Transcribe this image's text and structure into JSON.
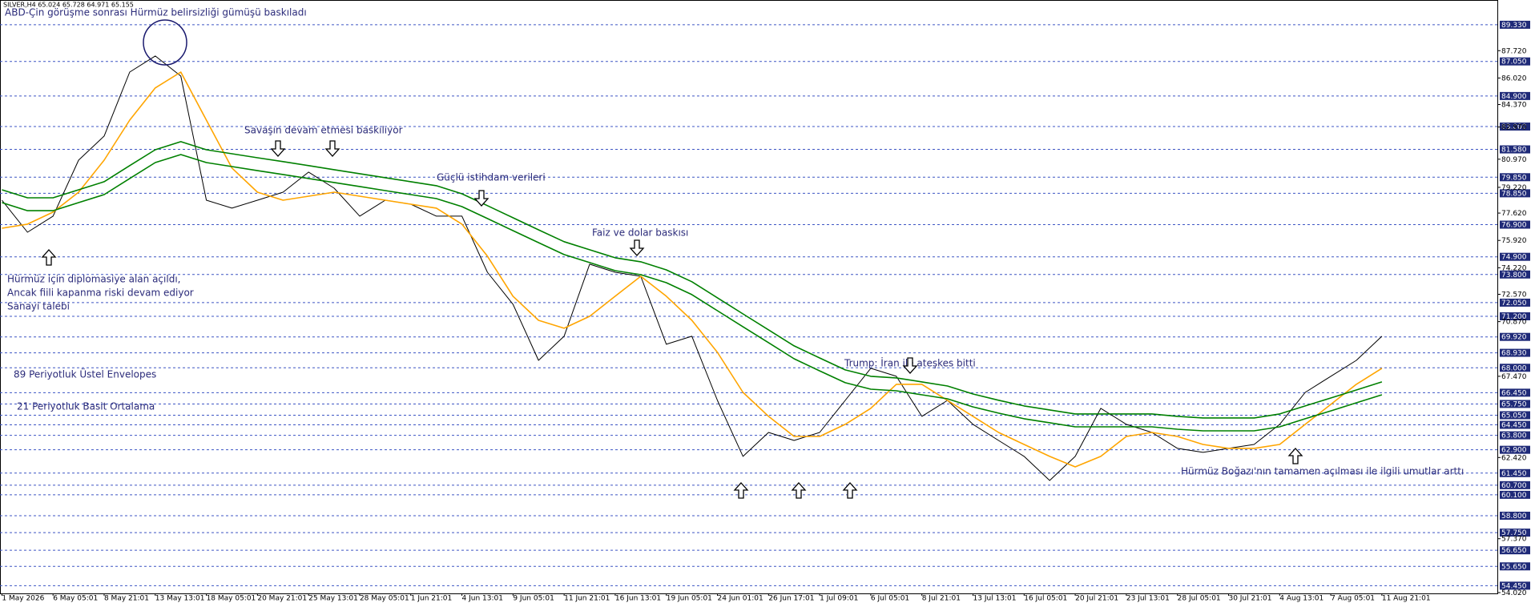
{
  "chart_data": {
    "type": "line",
    "symbol_info": "SILVER,H4  65.024 65.728 64.971 65.155",
    "title": "ABD-Çin görüşme sonrası Hürmüz belirsizliği gümüşü baskıladı",
    "annotations": [
      "Savaşın devam etmesi baskılıyor",
      "Güçlü istihdam verileri",
      "Faiz ve dolar baskısı",
      "Hürmüz için diplomasiye alan açıldı,",
      "Ancak fiili kapanma riski devam ediyor",
      "Sanayi talebi",
      "Trump: İran ile ateşkes bitti",
      "89 Periyotluk Üstel Envelopes",
      "21 Periyotluk Basit Ortalama",
      "Hürmüz Boğazı'nın tamamen açılması ile ilgili umutlar arttı"
    ],
    "x": [
      0,
      1,
      2,
      3,
      4,
      5,
      6,
      7,
      8,
      9,
      10,
      11,
      12,
      13,
      14,
      15,
      16,
      17,
      18,
      19,
      20,
      21,
      22,
      23,
      24,
      25,
      26,
      27,
      28,
      29,
      30,
      31,
      32,
      33,
      34,
      35,
      36,
      37,
      38,
      39,
      40,
      41,
      42,
      43,
      44,
      45,
      46,
      47,
      48,
      49,
      50,
      51,
      52,
      53,
      54
    ],
    "series": [
      {
        "color": "#000000",
        "values": [
          78.42,
          76.43,
          77.43,
          80.91,
          82.41,
          86.39,
          87.39,
          86.14,
          78.42,
          77.93,
          78.42,
          78.92,
          80.17,
          79.17,
          77.43,
          78.42,
          78.17,
          77.43,
          77.43,
          73.94,
          71.95,
          68.46,
          69.96,
          74.44,
          73.94,
          73.69,
          69.46,
          69.96,
          65.97,
          62.49,
          63.98,
          63.48,
          63.98,
          65.97,
          67.97,
          67.47,
          64.98,
          65.97,
          64.48,
          63.48,
          62.49,
          60.99,
          62.49,
          65.48,
          64.48,
          63.98,
          62.99,
          62.74,
          62.99,
          63.23,
          64.48,
          66.47,
          67.47,
          68.46,
          69.96
        ]
      },
      {
        "color": "#ffa500",
        "values": [
          76.68,
          76.93,
          77.68,
          78.92,
          80.91,
          83.4,
          85.4,
          86.39,
          83.4,
          80.42,
          78.92,
          78.42,
          78.67,
          78.92,
          78.67,
          78.42,
          78.17,
          77.93,
          76.93,
          74.94,
          72.45,
          70.95,
          70.46,
          71.2,
          72.45,
          73.69,
          72.45,
          70.95,
          68.96,
          66.47,
          64.98,
          63.73,
          63.73,
          64.48,
          65.48,
          66.97,
          66.97,
          65.97,
          64.98,
          63.98,
          63.23,
          62.49,
          61.84,
          62.49,
          63.73,
          63.98,
          63.73,
          63.23,
          62.99,
          62.99,
          63.23,
          64.48,
          65.72,
          66.97,
          67.97
        ]
      },
      {
        "color": "#008000",
        "values": [
          79.07,
          78.57,
          78.57,
          79.07,
          79.57,
          80.57,
          81.56,
          82.06,
          81.56,
          81.31,
          81.06,
          80.82,
          80.57,
          80.32,
          80.07,
          79.82,
          79.57,
          79.32,
          78.82,
          78.08,
          77.33,
          76.58,
          75.84,
          75.34,
          74.84,
          74.59,
          74.09,
          73.35,
          72.35,
          71.35,
          70.36,
          69.36,
          68.61,
          67.87,
          67.47,
          67.37,
          67.12,
          66.87,
          66.37,
          65.98,
          65.63,
          65.38,
          65.13,
          65.13,
          65.13,
          65.13,
          64.98,
          64.88,
          64.88,
          64.88,
          65.13,
          65.63,
          66.12,
          66.62,
          67.12
        ]
      },
      {
        "color": "#008000",
        "values": [
          78.27,
          77.77,
          77.77,
          78.27,
          78.77,
          79.77,
          80.76,
          81.26,
          80.76,
          80.51,
          80.26,
          80.02,
          79.77,
          79.52,
          79.27,
          79.02,
          78.77,
          78.52,
          78.02,
          77.28,
          76.53,
          75.78,
          75.04,
          74.54,
          74.04,
          73.79,
          73.29,
          72.55,
          71.55,
          70.55,
          69.56,
          68.56,
          67.81,
          67.07,
          66.67,
          66.57,
          66.32,
          66.07,
          65.57,
          65.18,
          64.83,
          64.58,
          64.33,
          64.33,
          64.33,
          64.33,
          64.18,
          64.08,
          64.08,
          64.08,
          64.33,
          64.83,
          65.32,
          65.82,
          66.32
        ]
      }
    ],
    "xlim": [
      -0.075,
      58.55
    ],
    "xticks": [
      {
        "value": 0,
        "label": "1 May 2026"
      },
      {
        "value": 2,
        "label": "6 May 05:01"
      },
      {
        "value": 4,
        "label": "8 May 21:01"
      },
      {
        "value": 6,
        "label": "13 May 13:01"
      },
      {
        "value": 8,
        "label": "18 May 05:01"
      },
      {
        "value": 10,
        "label": "20 May 21:01"
      },
      {
        "value": 12,
        "label": "25 May 13:01"
      },
      {
        "value": 14,
        "label": "28 May 05:01"
      },
      {
        "value": 16,
        "label": "1 Jun 21:01"
      },
      {
        "value": 18,
        "label": "4 Jun 13:01"
      },
      {
        "value": 20,
        "label": "9 Jun 05:01"
      },
      {
        "value": 22,
        "label": "11 Jun 21:01"
      },
      {
        "value": 24,
        "label": "16 Jun 13:01"
      },
      {
        "value": 26,
        "label": "19 Jun 05:01"
      },
      {
        "value": 28,
        "label": "24 Jun 01:01"
      },
      {
        "value": 30,
        "label": "26 Jun 17:01"
      },
      {
        "value": 32,
        "label": "1 Jul 09:01"
      },
      {
        "value": 34,
        "label": "6 Jul 05:01"
      },
      {
        "value": 36,
        "label": "8 Jul 21:01"
      },
      {
        "value": 38,
        "label": "13 Jul 13:01"
      },
      {
        "value": 40,
        "label": "16 Jul 05:01"
      },
      {
        "value": 42,
        "label": "20 Jul 21:01"
      },
      {
        "value": 44,
        "label": "23 Jul 13:01"
      },
      {
        "value": 46,
        "label": "28 Jul 05:01"
      },
      {
        "value": 48,
        "label": "30 Jul 21:01"
      },
      {
        "value": 50,
        "label": "4 Aug 13:01"
      },
      {
        "value": 52,
        "label": "7 Aug 05:01"
      },
      {
        "value": 54,
        "label": "11 Aug 21:01"
      }
    ],
    "ylim": [
      53.97,
      90.87
    ],
    "yticks": [
      {
        "value": 87.72,
        "label": "87.720"
      },
      {
        "value": 86.02,
        "label": "86.020"
      },
      {
        "value": 84.37,
        "label": "84.370"
      },
      {
        "value": 82.97,
        "label": "82.970"
      },
      {
        "value": 80.97,
        "label": "80.970"
      },
      {
        "value": 79.22,
        "label": "79.220"
      },
      {
        "value": 77.62,
        "label": "77.620"
      },
      {
        "value": 75.92,
        "label": "75.920"
      },
      {
        "value": 74.22,
        "label": "74.220"
      },
      {
        "value": 72.57,
        "label": "72.570"
      },
      {
        "value": 70.87,
        "label": "70.870"
      },
      {
        "value": 67.47,
        "label": "67.470"
      },
      {
        "value": 62.42,
        "label": "62.420"
      },
      {
        "value": 57.37,
        "label": "57.370"
      },
      {
        "value": 54.02,
        "label": "54.020"
      }
    ],
    "hlines": [
      {
        "value": 89.33,
        "label": "89.330"
      },
      {
        "value": 87.05,
        "label": "87.050"
      },
      {
        "value": 84.9,
        "label": "84.900"
      },
      {
        "value": 83,
        "label": "83.000"
      },
      {
        "value": 81.58,
        "label": "81.580"
      },
      {
        "value": 79.85,
        "label": "79.850"
      },
      {
        "value": 78.85,
        "label": "78.850"
      },
      {
        "value": 76.9,
        "label": "76.900"
      },
      {
        "value": 74.9,
        "label": "74.900"
      },
      {
        "value": 73.8,
        "label": "73.800"
      },
      {
        "value": 72.05,
        "label": "72.050"
      },
      {
        "value": 71.2,
        "label": "71.200"
      },
      {
        "value": 69.92,
        "label": "69.920"
      },
      {
        "value": 68.93,
        "label": "68.930"
      },
      {
        "value": 68,
        "label": "68.000"
      },
      {
        "value": 66.45,
        "label": "66.450"
      },
      {
        "value": 65.75,
        "label": "65.750"
      },
      {
        "value": 65.05,
        "label": "65.050"
      },
      {
        "value": 64.45,
        "label": "64.450"
      },
      {
        "value": 63.8,
        "label": "63.800"
      },
      {
        "value": 62.9,
        "label": "62.900"
      },
      {
        "value": 61.45,
        "label": "61.450"
      },
      {
        "value": 60.7,
        "label": "60.700"
      },
      {
        "value": 60.1,
        "label": "60.100"
      },
      {
        "value": 58.8,
        "label": "58.800"
      },
      {
        "value": 57.75,
        "label": "57.750"
      },
      {
        "value": 56.65,
        "label": "56.650"
      },
      {
        "value": 55.65,
        "label": "55.650"
      },
      {
        "value": 54.45,
        "label": "54.450"
      }
    ],
    "hline_color": "#3d55c4"
  }
}
